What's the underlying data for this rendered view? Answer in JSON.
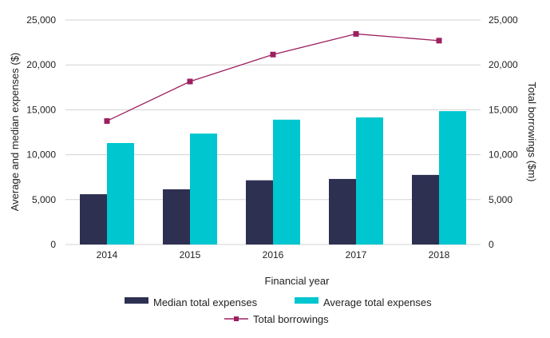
{
  "chart_data": {
    "type": "bar",
    "title": "",
    "xlabel": "Financial year",
    "ylabel": "Average and median expenses ($)",
    "y2label": "Total borrowings ($m)",
    "categories": [
      "2014",
      "2015",
      "2016",
      "2017",
      "2018"
    ],
    "ylim": [
      0,
      25000
    ],
    "y2lim": [
      0,
      25000
    ],
    "yticks": [
      0,
      5000,
      10000,
      15000,
      20000,
      25000
    ],
    "ytick_labels": [
      "0",
      "5,000",
      "10,000",
      "15,000",
      "20,000",
      "25,000"
    ],
    "y2tick_labels": [
      "0",
      "5,000",
      "10,000",
      "15,000",
      "20,000",
      "25,000"
    ],
    "grid": true,
    "legend_position": "bottom",
    "series": [
      {
        "name": "Median total expenses",
        "type": "bar",
        "axis": "left",
        "color": "#2e3052",
        "values": [
          5600,
          6150,
          7150,
          7300,
          7750
        ]
      },
      {
        "name": "Average total expenses",
        "type": "bar",
        "axis": "left",
        "color": "#00c6cf",
        "values": [
          11300,
          12350,
          13900,
          14150,
          14850
        ]
      },
      {
        "name": "Total borrowings",
        "type": "line",
        "axis": "right",
        "color": "#9c2060",
        "values": [
          13750,
          18150,
          21150,
          23450,
          22700
        ]
      }
    ]
  }
}
